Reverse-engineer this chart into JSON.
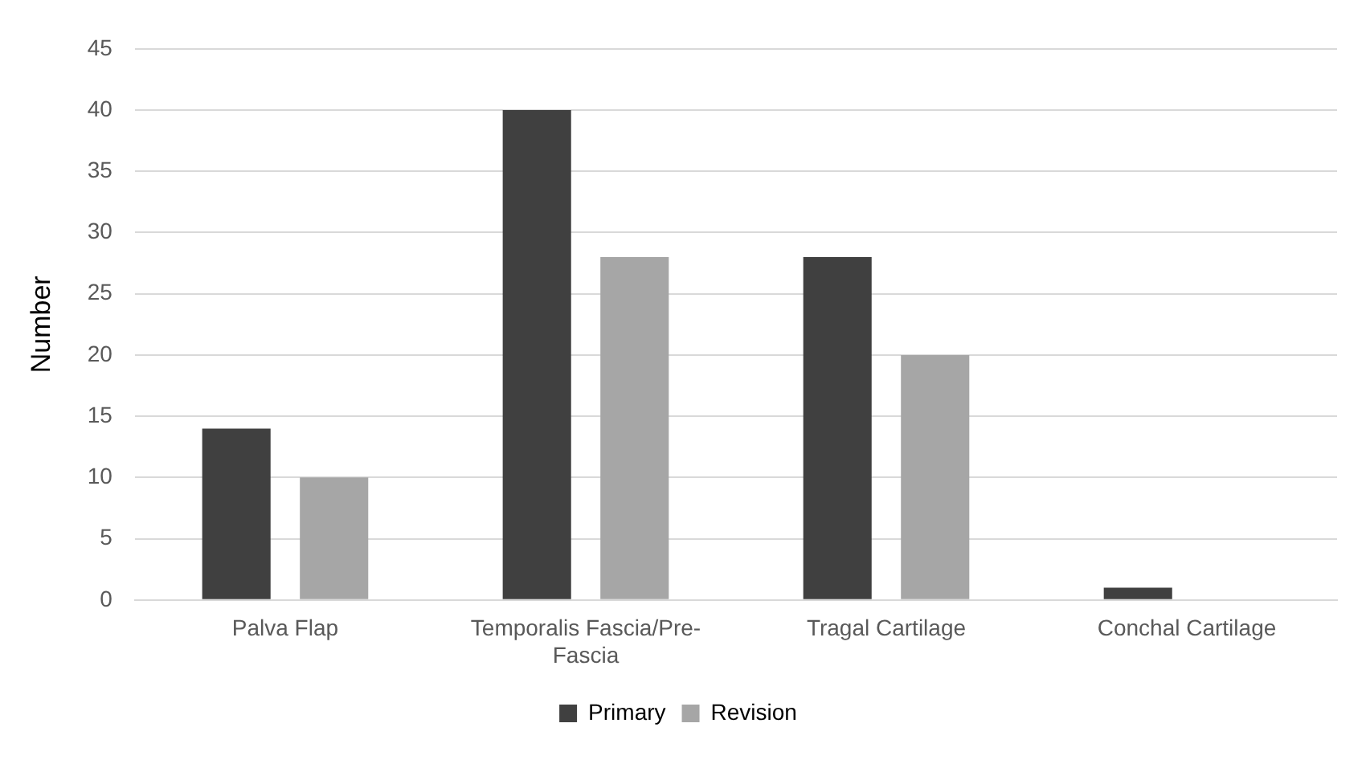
{
  "chart_data": {
    "type": "bar",
    "ylabel": "Number",
    "categories": [
      "Palva Flap",
      "Temporalis Fascia/Pre-Fascia",
      "Tragal Cartilage",
      "Conchal Cartilage"
    ],
    "series": [
      {
        "name": "Primary",
        "color": "#404040",
        "values": [
          14,
          40,
          28,
          1
        ]
      },
      {
        "name": "Revision",
        "color": "#a6a6a6",
        "values": [
          10,
          28,
          20,
          0
        ]
      }
    ],
    "ylim": [
      0,
      45
    ],
    "yticks": [
      0,
      5,
      10,
      15,
      20,
      25,
      30,
      35,
      40,
      45
    ],
    "grid": "y",
    "legend": "bottom"
  }
}
